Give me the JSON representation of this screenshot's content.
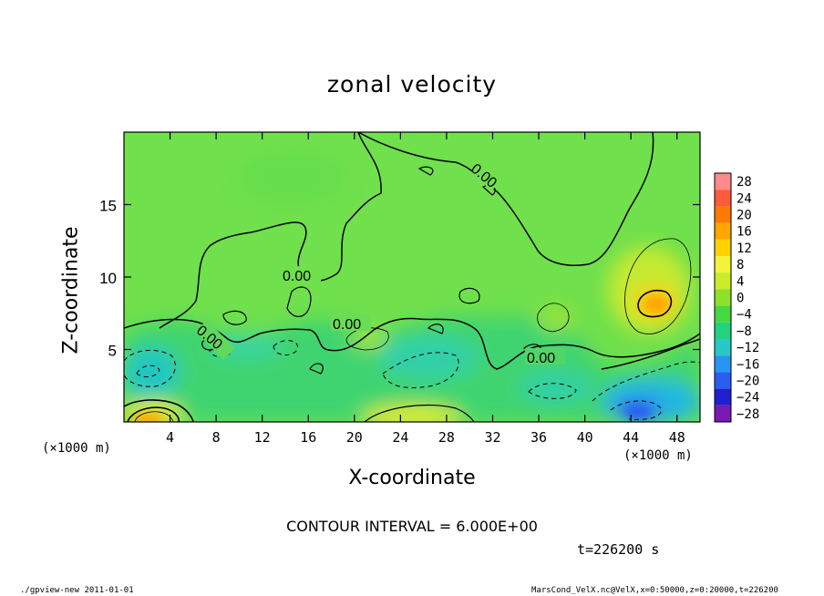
{
  "chart_data": {
    "type": "heatmap",
    "title": "zonal velocity",
    "xlabel": "X-coordinate",
    "ylabel": "Z-coordinate",
    "x_unit_label": "(×1000 m)",
    "xlim": [
      0,
      50
    ],
    "ylim": [
      0,
      20
    ],
    "x_ticks": [
      4,
      8,
      12,
      16,
      20,
      24,
      28,
      32,
      36,
      40,
      44,
      48
    ],
    "y_ticks": [
      5,
      10,
      15
    ],
    "colorbar": {
      "levels": [
        28,
        24,
        20,
        16,
        12,
        8,
        4,
        0,
        -4,
        -8,
        -12,
        -16,
        -20,
        -24,
        -28
      ],
      "colors": [
        "#ff8a8a",
        "#ff5a3c",
        "#ff7a00",
        "#ffa600",
        "#ffd200",
        "#f2f23a",
        "#c8ec2a",
        "#8ee02a",
        "#45d840",
        "#22d27f",
        "#28c8c8",
        "#2896f0",
        "#2a5ef0",
        "#2020d0",
        "#7a18b4"
      ]
    },
    "contour_interval_label": "CONTOUR INTERVAL = 6.000E+00",
    "contour_labels": [
      "0.00",
      "0.00",
      "0.00",
      "0.00",
      "0.00"
    ],
    "time_label": "t=226200 s"
  },
  "footer": {
    "left": "./gpview-new   2011-01-01",
    "right": "MarsCond_VelX.nc@VelX,x=0:50000,z=0:20000,t=226200"
  },
  "colors": {
    "background": "#ffffff",
    "field_base": "#6ee04a"
  }
}
